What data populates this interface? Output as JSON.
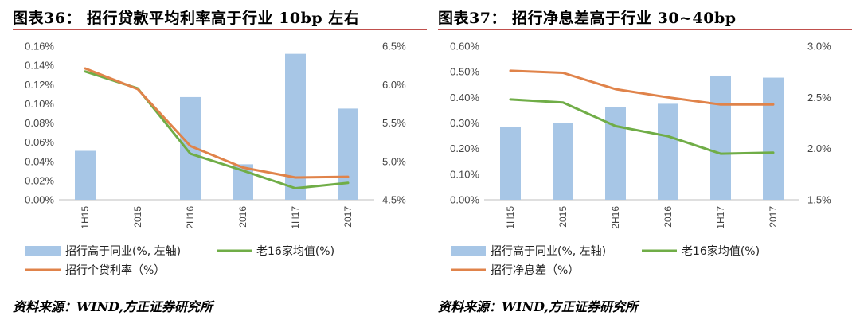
{
  "colors": {
    "bar": "#a7c6e6",
    "green": "#70ad47",
    "orange": "#e0834a",
    "rule": "#c0504d"
  },
  "chart_data": [
    {
      "type": "bar",
      "title": "图表36：   招行贷款平均利率高于行业 10bp 左右",
      "source": "资料来源：WIND,方正证券研究所",
      "categories": [
        "1H15",
        "2015",
        "2H16",
        "2016",
        "1H17",
        "2017"
      ],
      "y_left": {
        "min": 0,
        "max": 0.16,
        "ticks": [
          "0.00%",
          "0.02%",
          "0.04%",
          "0.06%",
          "0.08%",
          "0.10%",
          "0.12%",
          "0.14%",
          "0.16%"
        ]
      },
      "y_right": {
        "min": 4.5,
        "max": 6.5,
        "ticks": [
          "4.5%",
          "5.0%",
          "5.5%",
          "6.0%",
          "6.5%"
        ]
      },
      "legend_placement": "bottom",
      "series": [
        {
          "name": "招行高于同业(%,  左轴)",
          "type": "bar",
          "axis": "left",
          "color_key": "bar",
          "values": [
            0.051,
            null,
            0.107,
            0.037,
            0.152,
            0.095
          ]
        },
        {
          "name": "老16家均值(%)",
          "type": "line",
          "axis": "right",
          "color_key": "green",
          "values": [
            6.17,
            5.95,
            5.1,
            4.88,
            4.65,
            4.72
          ]
        },
        {
          "name": "招行个贷利率（%）",
          "type": "line",
          "axis": "right",
          "color_key": "orange",
          "values": [
            6.21,
            5.94,
            5.2,
            4.92,
            4.79,
            4.8
          ]
        }
      ]
    },
    {
      "type": "bar",
      "title": "图表37：   招行净息差高于行业 30~40bp",
      "source": "资料来源：WIND,方正证券研究所",
      "categories": [
        "1H15",
        "2015",
        "2H16",
        "2016",
        "1H17",
        "2017"
      ],
      "y_left": {
        "min": 0,
        "max": 0.6,
        "ticks": [
          "0.00%",
          "0.10%",
          "0.20%",
          "0.30%",
          "0.40%",
          "0.50%",
          "0.60%"
        ]
      },
      "y_right": {
        "min": 1.5,
        "max": 3.0,
        "ticks": [
          "1.5%",
          "2.0%",
          "2.5%",
          "3.0%"
        ]
      },
      "legend_placement": "bottom",
      "series": [
        {
          "name": "招行高于同业(%,  左轴)",
          "type": "bar",
          "axis": "left",
          "color_key": "bar",
          "values": [
            0.285,
            0.3,
            0.363,
            0.375,
            0.485,
            0.477
          ]
        },
        {
          "name": "老16家均值(%)",
          "type": "line",
          "axis": "right",
          "color_key": "green",
          "values": [
            2.48,
            2.45,
            2.22,
            2.12,
            1.95,
            1.96
          ]
        },
        {
          "name": "招行净息差（%）",
          "type": "line",
          "axis": "right",
          "color_key": "orange",
          "values": [
            2.76,
            2.74,
            2.58,
            2.5,
            2.43,
            2.43
          ]
        }
      ]
    }
  ]
}
